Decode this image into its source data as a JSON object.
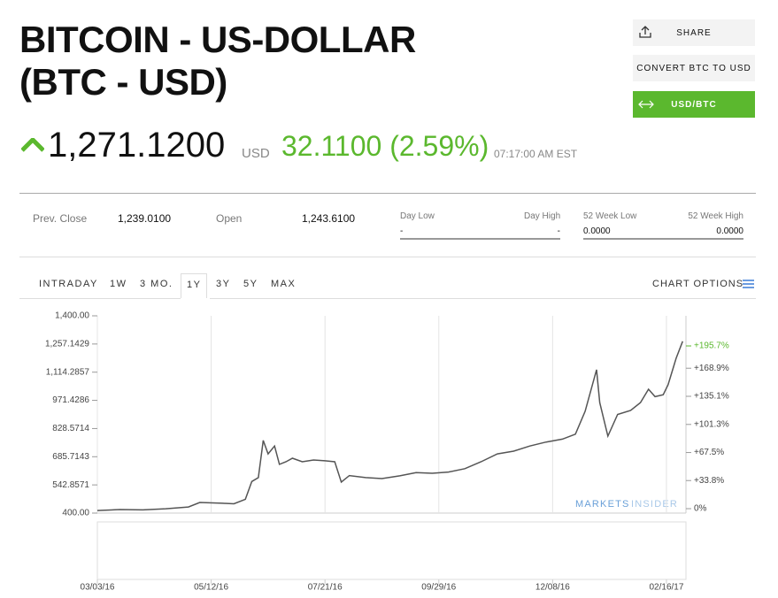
{
  "header": {
    "title_line1": "BITCOIN - US-DOLLAR",
    "title_line2": "(BTC - USD)",
    "price": "1,271.1200",
    "currency": "USD",
    "change": "32.1100 (2.59%)",
    "time": "07:17:00 AM EST"
  },
  "buttons": [
    "SHARE",
    "CONVERT BTC TO USD",
    "USD/BTC"
  ],
  "stats": {
    "prev_close_label": "Prev. Close",
    "prev_close": "1,239.0100",
    "open_label": "Open",
    "open": "1,243.6100",
    "day_low_label": "Day Low",
    "day_low": "-",
    "day_high_label": "Day High",
    "day_high": "-",
    "week52_low_label": "52 Week Low",
    "week52_low": "0.0000",
    "week52_high_label": "52 Week High",
    "week52_high": "0.0000"
  },
  "tabs": [
    "INTRADAY",
    "1W",
    "3 MO.",
    "1Y",
    "3Y",
    "5Y",
    "MAX"
  ],
  "chart_options": "CHART OPTIONS",
  "watermark": [
    "MARKETS",
    "INSIDER"
  ],
  "chart_data": {
    "type": "line",
    "color": "#555555",
    "grid": true,
    "x": [
      "03/03/16",
      "03/17/16",
      "03/31/16",
      "04/14/16",
      "04/28/16",
      "05/05/16",
      "05/19/16",
      "05/26/16",
      "06/02/16",
      "06/06/16",
      "06/10/16",
      "06/13/16",
      "06/16/16",
      "06/20/16",
      "06/23/16",
      "06/27/16",
      "07/01/16",
      "07/07/16",
      "07/14/16",
      "07/21/16",
      "07/27/16",
      "07/31/16",
      "08/05/16",
      "08/15/16",
      "08/25/16",
      "09/05/16",
      "09/15/16",
      "09/25/16",
      "10/05/16",
      "10/15/16",
      "10/25/16",
      "11/04/16",
      "11/14/16",
      "11/24/16",
      "12/04/16",
      "12/14/16",
      "12/22/16",
      "12/28/16",
      "01/04/17",
      "01/06/17",
      "01/11/17",
      "01/17/17",
      "01/25/17",
      "01/31/17",
      "02/05/17",
      "02/09/17",
      "02/14/17",
      "02/17/17",
      "02/22/17",
      "02/26/17"
    ],
    "values": [
      413,
      418,
      416,
      422,
      431,
      454,
      450,
      447,
      470,
      560,
      580,
      768,
      700,
      740,
      647,
      660,
      678,
      660,
      669,
      665,
      660,
      557,
      590,
      580,
      575,
      589,
      605,
      602,
      608,
      625,
      660,
      700,
      714,
      740,
      760,
      775,
      800,
      916,
      1127,
      960,
      790,
      900,
      920,
      960,
      1028,
      990,
      1000,
      1050,
      1186,
      1271
    ],
    "xlim": [
      "03/03/16",
      "02/28/17"
    ],
    "xticks": [
      "03/03/16",
      "05/12/16",
      "07/21/16",
      "09/29/16",
      "12/08/16",
      "02/16/17"
    ],
    "ylim": [
      400,
      1400
    ],
    "yticks": [
      {
        "value": 400,
        "label": "400.00"
      },
      542.8571,
      685.7143,
      828.5714,
      971.4286,
      {
        "value": 1114.2857,
        "label": "1,114.2857"
      },
      {
        "value": 1257.1429,
        "label": "1,257.1429"
      },
      {
        "value": 1400,
        "label": "1,400.00"
      }
    ],
    "y2lim": [
      -5.3,
      231.9
    ],
    "y2ticks": [
      {
        "value": 0,
        "label": "0%"
      },
      {
        "value": 33.8,
        "label": "+33.8%"
      },
      {
        "value": 67.5,
        "label": "+67.5%"
      },
      {
        "value": 101.3,
        "label": "+101.3%"
      },
      {
        "value": 135.1,
        "label": "+135.1%"
      },
      {
        "value": 168.9,
        "label": "+168.9%"
      },
      {
        "value": 195.7,
        "label": "+195.7%"
      }
    ]
  }
}
